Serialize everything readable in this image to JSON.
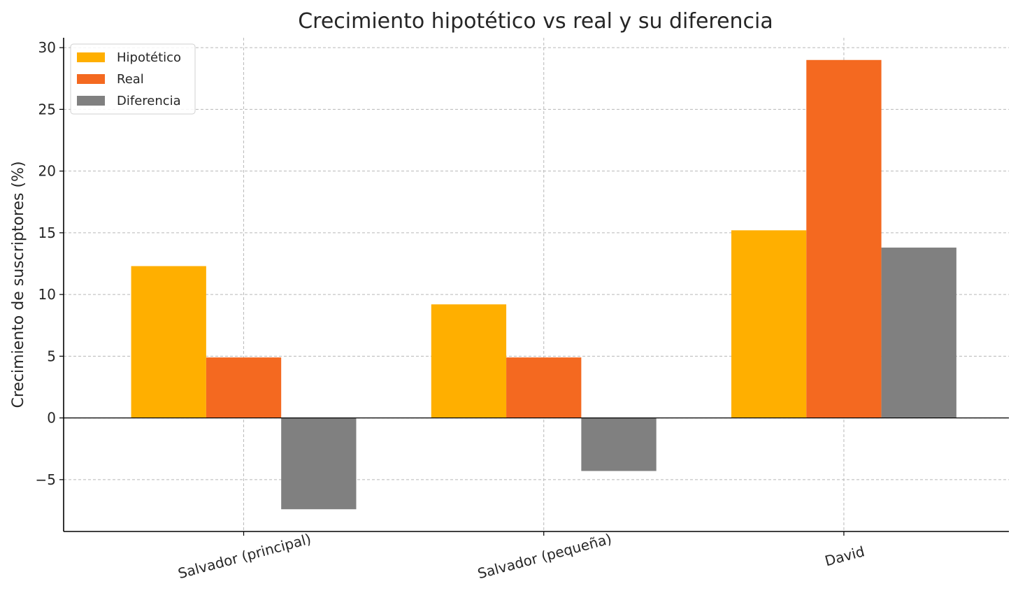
{
  "chart_data": {
    "type": "bar",
    "title": "Crecimiento hipotético vs real y su diferencia",
    "xlabel": "",
    "ylabel": "Crecimiento de suscriptores (%)",
    "categories": [
      "Salvador (principal)",
      "Salvador (pequeña)",
      "David"
    ],
    "series": [
      {
        "name": "Hipotético",
        "color": "#FFAF00",
        "values": [
          12.3,
          9.2,
          15.2
        ]
      },
      {
        "name": "Real",
        "color": "#F46920",
        "values": [
          4.9,
          4.9,
          29.0
        ]
      },
      {
        "name": "Diferencia",
        "color": "#808080",
        "values": [
          -7.4,
          -4.3,
          13.8
        ]
      }
    ],
    "ylim": [
      -9.2,
      30.8
    ],
    "yticks": [
      -5,
      0,
      5,
      10,
      15,
      20,
      25,
      30
    ],
    "ytick_labels": [
      "−5",
      "0",
      "5",
      "10",
      "15",
      "20",
      "25",
      "30"
    ],
    "grid": true,
    "legend_position": "top-left"
  }
}
